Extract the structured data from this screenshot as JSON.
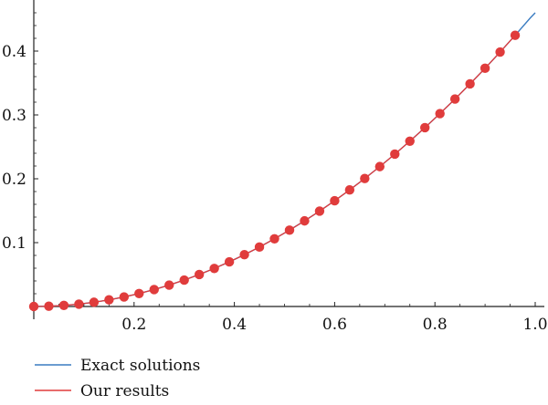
{
  "chart_data": {
    "type": "line",
    "title": "",
    "xlabel": "",
    "ylabel": "",
    "xlim": [
      0,
      1.0
    ],
    "ylim": [
      0,
      0.47
    ],
    "x_ticks": [
      0.2,
      0.4,
      0.6,
      0.8,
      1.0
    ],
    "x_tick_labels": [
      "0.2",
      "0.4",
      "0.6",
      "0.8",
      "1.0"
    ],
    "y_ticks": [
      0.1,
      0.2,
      0.3,
      0.4
    ],
    "y_tick_labels": [
      "0.1",
      "0.2",
      "0.3",
      "0.4"
    ],
    "grid": false,
    "legend_position": "bottom-left",
    "series": [
      {
        "name": "Exact solutions",
        "color": "#3a7cc1",
        "style": "line",
        "x": [
          0,
          0.03,
          0.06,
          0.09,
          0.12,
          0.15,
          0.18,
          0.21,
          0.24,
          0.27,
          0.3,
          0.33,
          0.36,
          0.39,
          0.42,
          0.45,
          0.48,
          0.51,
          0.54,
          0.57,
          0.6,
          0.63,
          0.66,
          0.69,
          0.72,
          0.75,
          0.78,
          0.81,
          0.84,
          0.87,
          0.9,
          0.93,
          0.96,
          0.99,
          1.0
        ],
        "y": [
          0,
          0.0004,
          0.0017,
          0.0037,
          0.0066,
          0.0104,
          0.0149,
          0.0203,
          0.0265,
          0.0335,
          0.0414,
          0.0501,
          0.0596,
          0.0699,
          0.0811,
          0.0931,
          0.106,
          0.1196,
          0.1341,
          0.1494,
          0.1656,
          0.1826,
          0.2004,
          0.2191,
          0.2386,
          0.2589,
          0.2801,
          0.3021,
          0.3249,
          0.3486,
          0.3731,
          0.3985,
          0.4247,
          0.4518,
          0.46
        ]
      },
      {
        "name": "Our results",
        "color": "#e03c3c",
        "style": "line+markers",
        "x": [
          0,
          0.03,
          0.06,
          0.09,
          0.12,
          0.15,
          0.18,
          0.21,
          0.24,
          0.27,
          0.3,
          0.33,
          0.36,
          0.39,
          0.42,
          0.45,
          0.48,
          0.51,
          0.54,
          0.57,
          0.6,
          0.63,
          0.66,
          0.69,
          0.72,
          0.75,
          0.78,
          0.81,
          0.84,
          0.87,
          0.9,
          0.93,
          0.96
        ],
        "y": [
          0,
          0.0004,
          0.0017,
          0.0037,
          0.0066,
          0.0104,
          0.0149,
          0.0203,
          0.0265,
          0.0335,
          0.0414,
          0.0501,
          0.0596,
          0.0699,
          0.0811,
          0.0931,
          0.106,
          0.1196,
          0.1341,
          0.1494,
          0.1656,
          0.1826,
          0.2004,
          0.2191,
          0.2386,
          0.2589,
          0.2801,
          0.3021,
          0.3249,
          0.3486,
          0.3731,
          0.3985,
          0.4247
        ]
      }
    ]
  }
}
